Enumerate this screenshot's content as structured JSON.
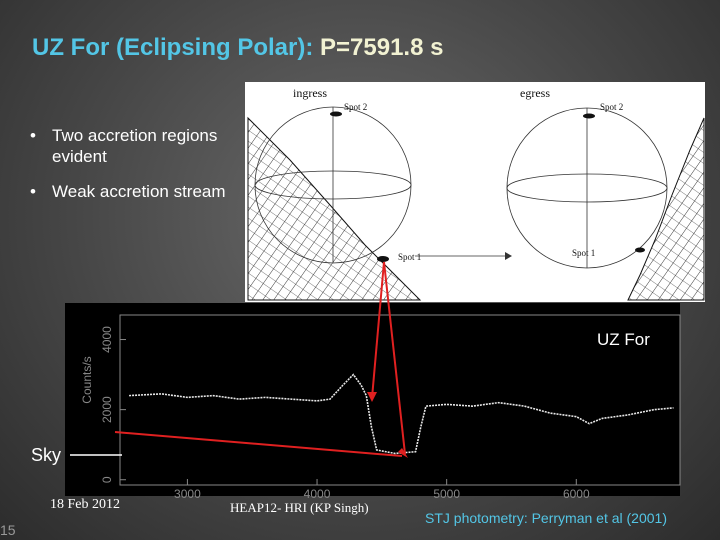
{
  "title": {
    "name": "UZ For (Eclipsing Polar):",
    "period": "P=7591.8 s"
  },
  "bullets": [
    "Two accretion regions evident",
    "Weak accretion stream"
  ],
  "diagram": {
    "ingress": "ingress",
    "egress": "egress",
    "ingress_spots": [
      "Spot 2",
      "Spot 1"
    ],
    "egress_spots": [
      "Spot 2",
      "Spot 1"
    ]
  },
  "plot": {
    "type": "line",
    "label": "UZ For",
    "y_label": "Counts/s",
    "sky_label": "Sky",
    "x": [
      2550,
      2800,
      3000,
      3200,
      3400,
      3600,
      3800,
      4000,
      4100,
      4200,
      4280,
      4340,
      4380,
      4420,
      4460,
      4600,
      4760,
      4800,
      4840,
      5000,
      5200,
      5400,
      5600,
      5800,
      6000,
      6100,
      6200,
      6400,
      6600,
      6750
    ],
    "values": [
      2400,
      2450,
      2350,
      2400,
      2300,
      2350,
      2300,
      2250,
      2300,
      2700,
      3000,
      2700,
      2400,
      1500,
      850,
      750,
      800,
      1500,
      2100,
      2150,
      2100,
      2200,
      2100,
      1900,
      1800,
      1600,
      1750,
      1850,
      2000,
      2050
    ],
    "xlim": [
      2480,
      6800
    ],
    "ylim": [
      -150,
      4700
    ],
    "xticks": [
      3000,
      4000,
      5000,
      6000
    ],
    "yticks": [
      0,
      2000,
      4000
    ]
  },
  "footer": {
    "date": "18 Feb 2012",
    "event": "HEAP12- HRI (KP Singh)",
    "credit": "STJ photometry: Perryman et al (2001)",
    "slide_number": 15
  }
}
